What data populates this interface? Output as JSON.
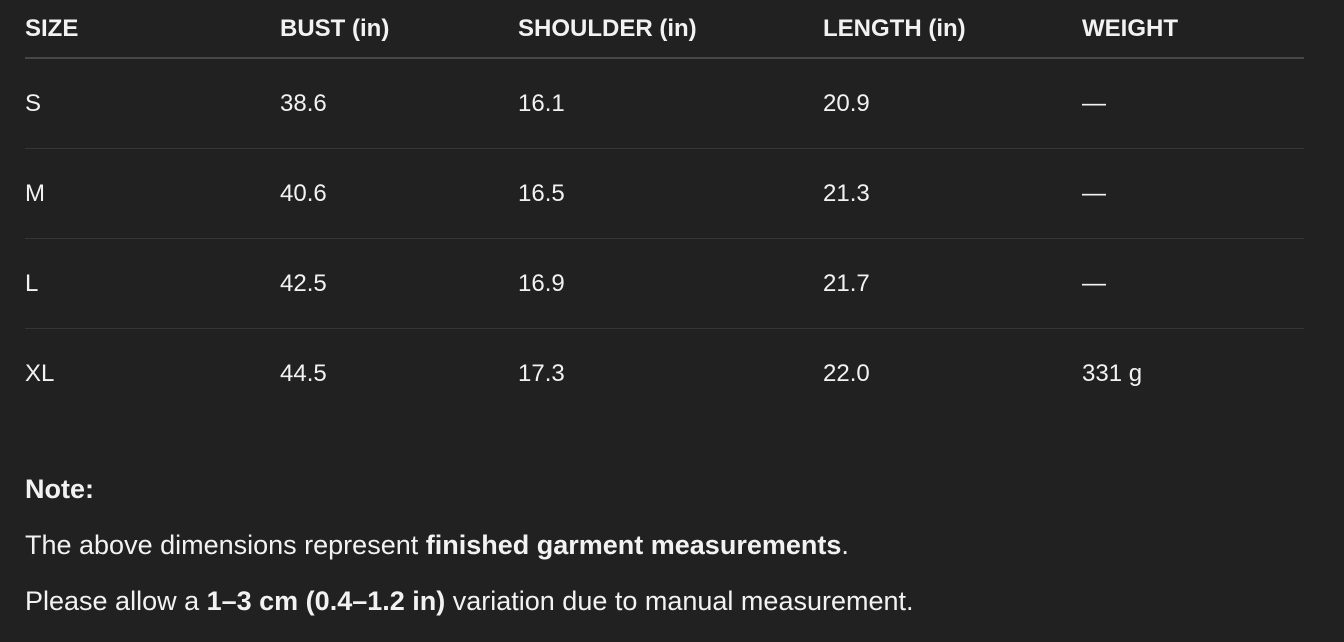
{
  "table": {
    "headers": [
      "SIZE",
      "BUST (in)",
      "SHOULDER (in)",
      "LENGTH (in)",
      "WEIGHT"
    ],
    "rows": [
      [
        "S",
        "38.6",
        "16.1",
        "20.9",
        "—"
      ],
      [
        "M",
        "40.6",
        "16.5",
        "21.3",
        "—"
      ],
      [
        "L",
        "42.5",
        "16.9",
        "21.7",
        "—"
      ],
      [
        "XL",
        "44.5",
        "17.3",
        "22.0",
        "331 g"
      ]
    ]
  },
  "note": {
    "title": "Note:",
    "line1": {
      "pre": "The above dimensions represent ",
      "bold": "finished garment measurements",
      "post": "."
    },
    "line2": {
      "pre": "Please allow a ",
      "bold": "1–3 cm (0.4–1.2 in)",
      "post": " variation due to manual measurement."
    }
  }
}
